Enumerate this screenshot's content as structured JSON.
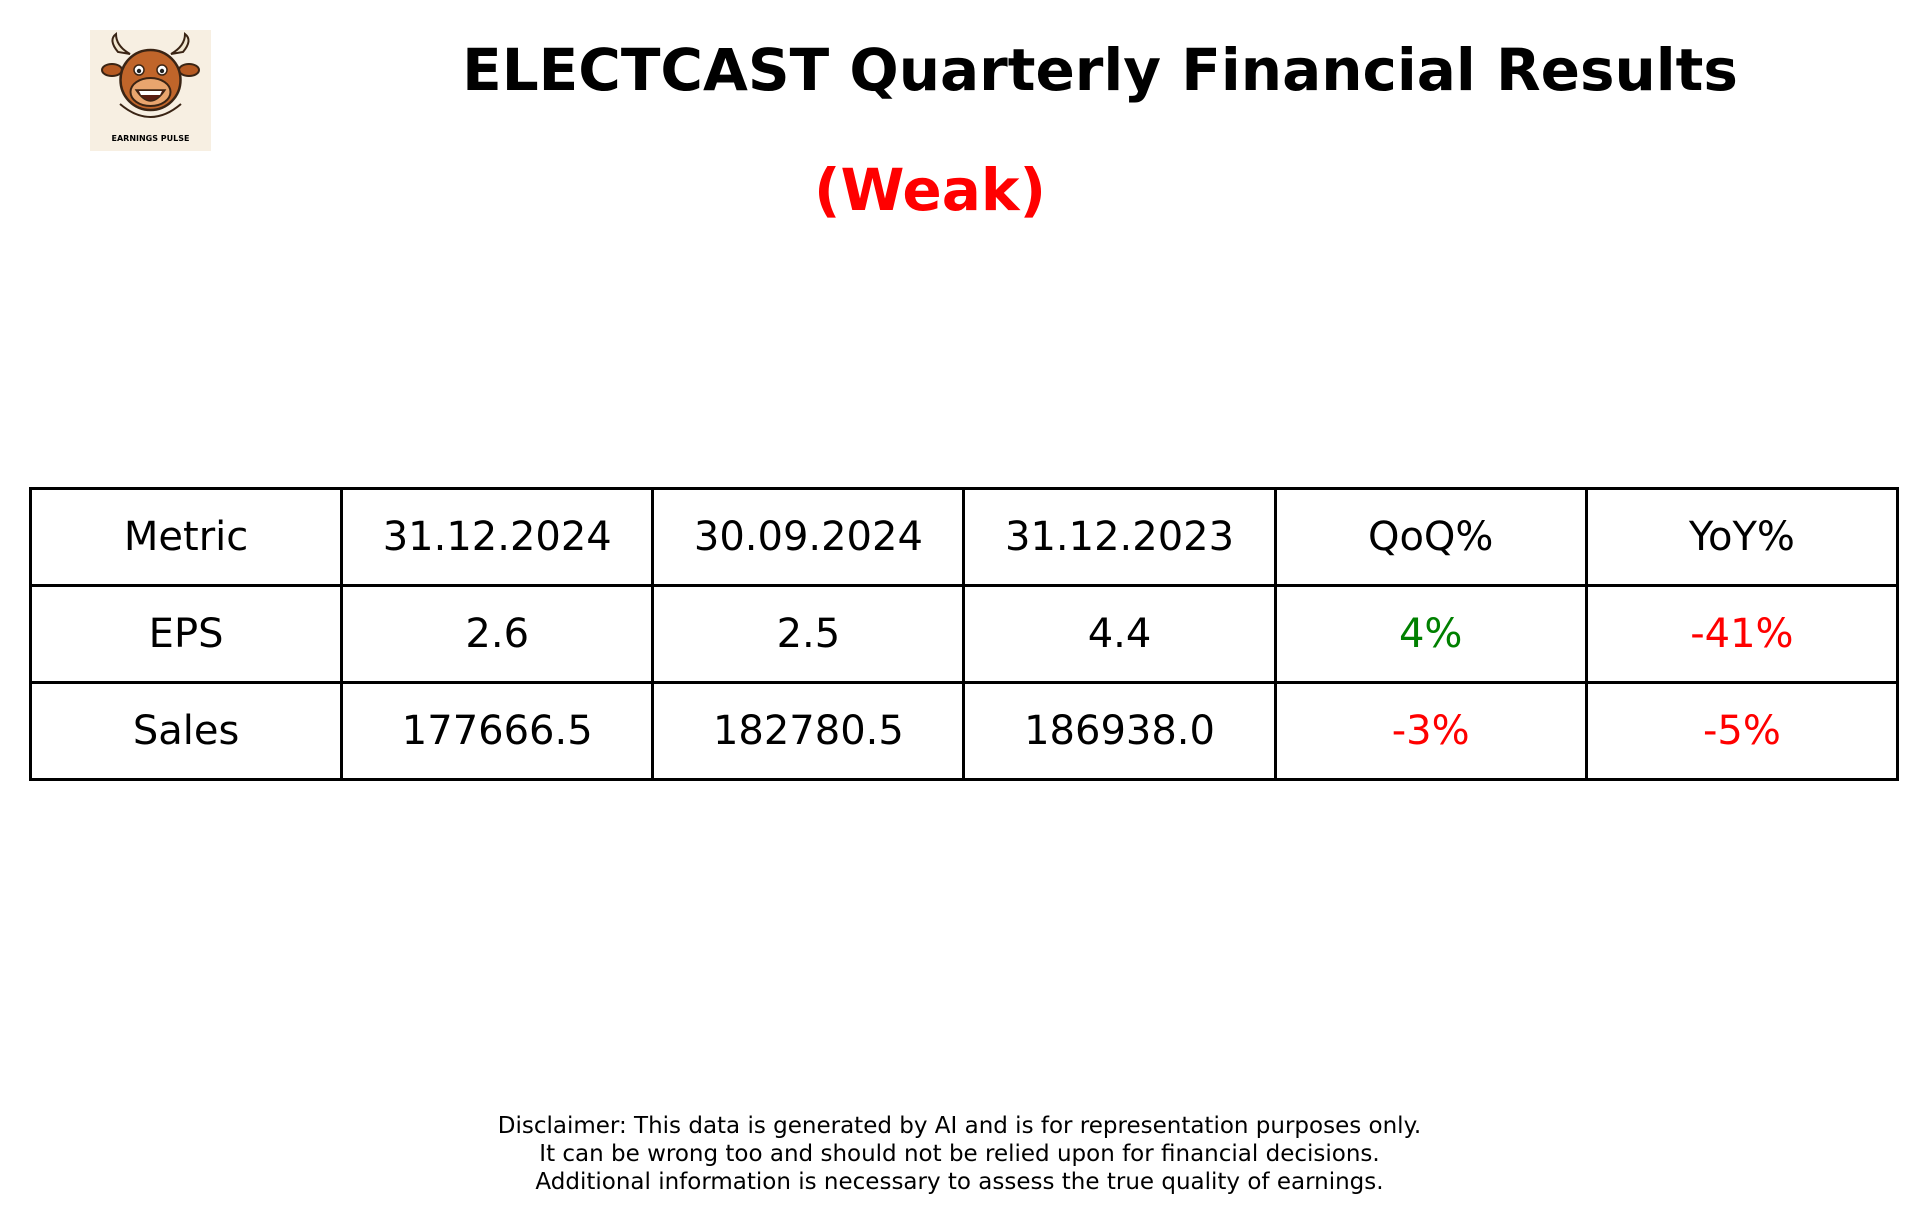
{
  "logo": {
    "text": "EARNINGS PULSE",
    "icon": "bull-mascot-icon"
  },
  "header": {
    "title": "ELECTCAST Quarterly Financial Results",
    "rating": "(Weak)",
    "rating_color": "#ff0000"
  },
  "table": {
    "headers": [
      "Metric",
      "31.12.2024",
      "30.09.2024",
      "31.12.2023",
      "QoQ%",
      "YoY%"
    ],
    "rows": [
      {
        "cells": [
          "EPS",
          "2.6",
          "2.5",
          "4.4",
          "4%",
          "-41%"
        ],
        "colors": [
          "#000000",
          "#000000",
          "#000000",
          "#000000",
          "#008000",
          "#ff0000"
        ]
      },
      {
        "cells": [
          "Sales",
          "177666.5",
          "182780.5",
          "186938.0",
          "-3%",
          "-5%"
        ],
        "colors": [
          "#000000",
          "#000000",
          "#000000",
          "#000000",
          "#ff0000",
          "#ff0000"
        ]
      }
    ]
  },
  "disclaimer": {
    "line1": "Disclaimer: This data is generated by AI and is for representation purposes only.",
    "line2": "It can be wrong too and should not be relied upon for financial decisions.",
    "line3": "Additional information is necessary to assess the true quality of earnings."
  }
}
